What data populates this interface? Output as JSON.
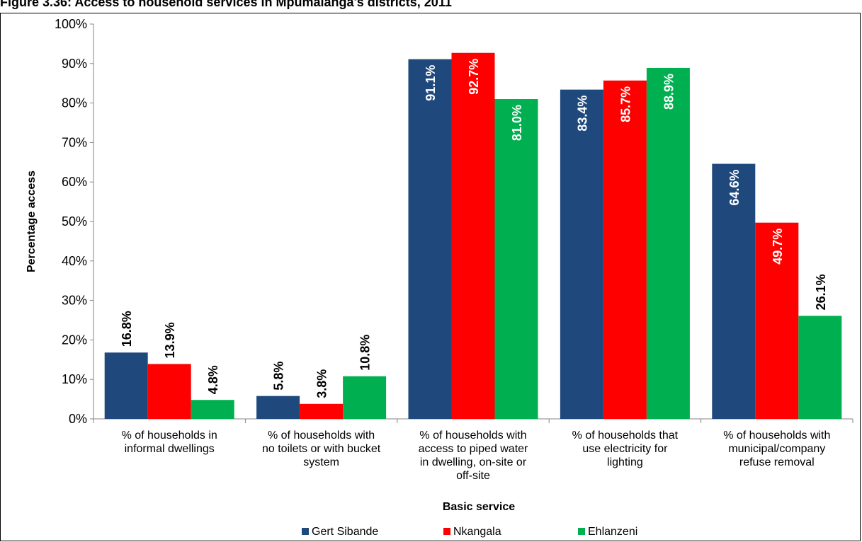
{
  "figure_title": "Figure 3.36: Access to household services in Mpumalanga's districts, 2011",
  "chart_data": {
    "type": "bar",
    "title": "",
    "xlabel": "Basic service",
    "ylabel": "Percentage access",
    "ylim": [
      0,
      100
    ],
    "yticks": [
      "0%",
      "10%",
      "20%",
      "30%",
      "40%",
      "50%",
      "60%",
      "70%",
      "80%",
      "90%",
      "100%"
    ],
    "grid": false,
    "legend_position": "bottom",
    "categories": [
      [
        "% of households in",
        "informal dwellings"
      ],
      [
        "% of households with",
        "no toilets or with bucket",
        "system"
      ],
      [
        "% of households with",
        "access to piped water",
        "in dwelling, on-site or",
        "off-site"
      ],
      [
        "% of households that",
        "use electricity for",
        "lighting"
      ],
      [
        "% of households with",
        "municipal/company",
        "refuse removal"
      ]
    ],
    "series": [
      {
        "name": "Gert Sibande",
        "color": "#1F497D",
        "values": [
          16.8,
          5.8,
          91.1,
          83.4,
          64.6
        ],
        "labels": [
          "16.8%",
          "5.8%",
          "91.1%",
          "83.4%",
          "64.6%"
        ]
      },
      {
        "name": "Nkangala",
        "color": "#FF0000",
        "values": [
          13.9,
          3.8,
          92.7,
          85.7,
          49.7
        ],
        "labels": [
          "13.9%",
          "3.8%",
          "92.7%",
          "85.7%",
          "49.7%"
        ]
      },
      {
        "name": "Ehlanzeni",
        "color": "#00B050",
        "values": [
          4.8,
          10.8,
          81.0,
          88.9,
          26.1
        ],
        "labels": [
          "4.8%",
          "10.8%",
          "81.0%",
          "88.9%",
          "26.1%"
        ]
      }
    ]
  }
}
